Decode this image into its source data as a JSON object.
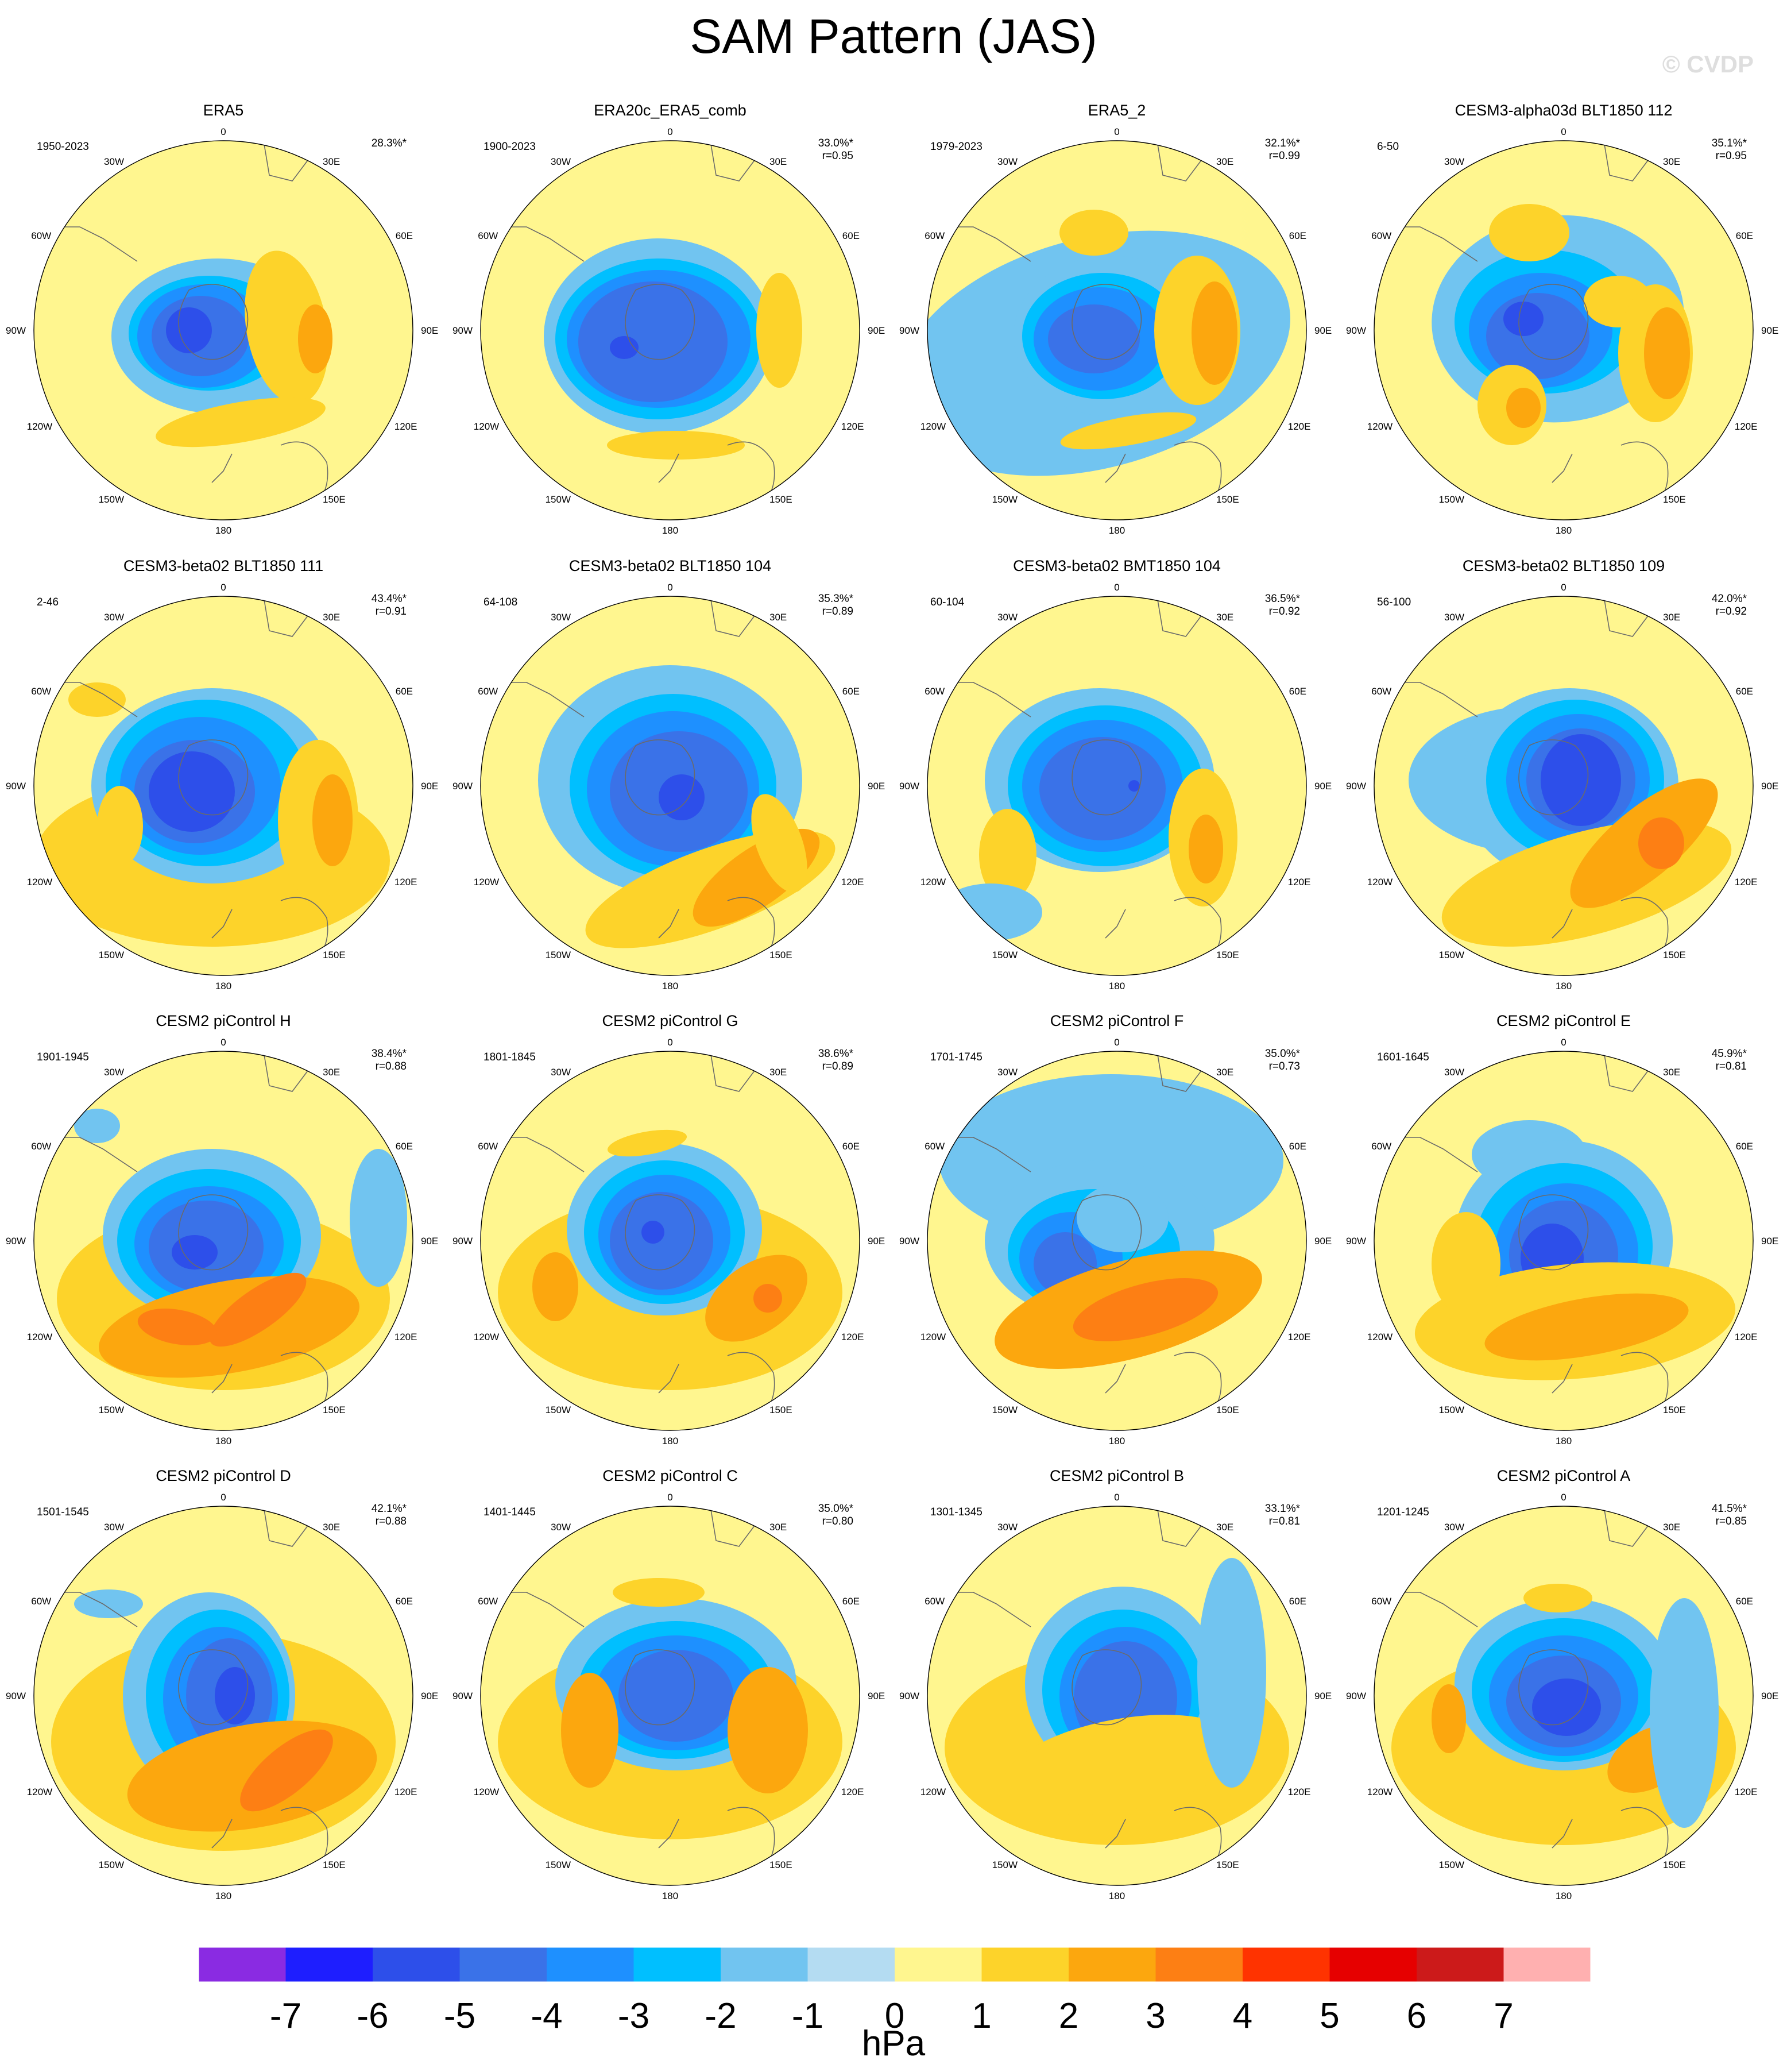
{
  "title": "SAM Pattern (JAS)",
  "watermark": "© CVDP",
  "lon_labels": [
    "0",
    "30E",
    "60E",
    "90E",
    "120E",
    "150E",
    "180",
    "150W",
    "120W",
    "90W",
    "60W",
    "30W"
  ],
  "panels": [
    {
      "name": "ERA5",
      "years": "1950-2023",
      "pct": "28.3%*",
      "r": ""
    },
    {
      "name": "ERA20c_ERA5_comb",
      "years": "1900-2023",
      "pct": "33.0%*",
      "r": "r=0.95"
    },
    {
      "name": "ERA5_2",
      "years": "1979-2023",
      "pct": "32.1%*",
      "r": "r=0.99"
    },
    {
      "name": "CESM3-alpha03d BLT1850 112",
      "years": "6-50",
      "pct": "35.1%*",
      "r": "r=0.95"
    },
    {
      "name": "CESM3-beta02 BLT1850 111",
      "years": "2-46",
      "pct": "43.4%*",
      "r": "r=0.91"
    },
    {
      "name": "CESM3-beta02 BLT1850 104",
      "years": "64-108",
      "pct": "35.3%*",
      "r": "r=0.89"
    },
    {
      "name": "CESM3-beta02 BMT1850 104",
      "years": "60-104",
      "pct": "36.5%*",
      "r": "r=0.92"
    },
    {
      "name": "CESM3-beta02 BLT1850 109",
      "years": "56-100",
      "pct": "42.0%*",
      "r": "r=0.92"
    },
    {
      "name": "CESM2 piControl H",
      "years": "1901-1945",
      "pct": "38.4%*",
      "r": "r=0.88"
    },
    {
      "name": "CESM2 piControl G",
      "years": "1801-1845",
      "pct": "38.6%*",
      "r": "r=0.89"
    },
    {
      "name": "CESM2 piControl F",
      "years": "1701-1745",
      "pct": "35.0%*",
      "r": "r=0.73"
    },
    {
      "name": "CESM2 piControl E",
      "years": "1601-1645",
      "pct": "45.9%*",
      "r": "r=0.81"
    },
    {
      "name": "CESM2 piControl D",
      "years": "1501-1545",
      "pct": "42.1%*",
      "r": "r=0.88"
    },
    {
      "name": "CESM2 piControl C",
      "years": "1401-1445",
      "pct": "35.0%*",
      "r": "r=0.80"
    },
    {
      "name": "CESM2 piControl B",
      "years": "1301-1345",
      "pct": "33.1%*",
      "r": "r=0.81"
    },
    {
      "name": "CESM2 piControl A",
      "years": "1201-1245",
      "pct": "41.5%*",
      "r": "r=0.85"
    }
  ],
  "colorbar": {
    "units": "hPa",
    "labels": [
      "-7",
      "-6",
      "-5",
      "-4",
      "-3",
      "-2",
      "-1",
      "0",
      "1",
      "2",
      "3",
      "4",
      "5",
      "6",
      "7"
    ],
    "colors": [
      "#8a2be2",
      "#1e1eff",
      "#2d4fea",
      "#3a72e8",
      "#1e90ff",
      "#00bfff",
      "#71c4f0",
      "#b4dcf2",
      "#fff68f",
      "#fdd32a",
      "#fca70e",
      "#fd7f14",
      "#ff3300",
      "#e60000",
      "#cc1a1a",
      "#ffb0b0"
    ]
  }
}
